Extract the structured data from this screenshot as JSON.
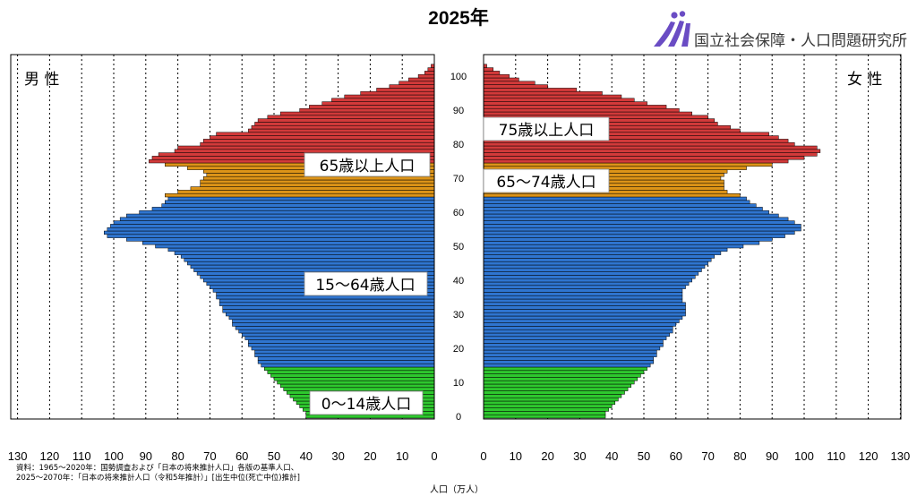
{
  "title": "2025年",
  "logo": {
    "name": "国立社会保障・人口問題研究所"
  },
  "chart_data": {
    "type": "bar",
    "orientation": "horizontal-population-pyramid",
    "title": "2025年",
    "xlabel": "人口（万人）",
    "ylabel": "",
    "xlim": [
      0,
      130
    ],
    "ylim": [
      0,
      105
    ],
    "x_ticks": [
      130,
      120,
      110,
      100,
      90,
      80,
      70,
      60,
      50,
      40,
      30,
      20,
      10,
      0
    ],
    "y_ticks": [
      0,
      10,
      20,
      30,
      40,
      50,
      60,
      70,
      80,
      90,
      100
    ],
    "grid": true,
    "sides": {
      "male": "男 性",
      "female": "女 性"
    },
    "age_groups": [
      {
        "name": "0～14歳人口",
        "from": 0,
        "to": 14,
        "color": "#2ec82e"
      },
      {
        "name": "15～64歳人口",
        "from": 15,
        "to": 64,
        "color": "#2f75d0"
      },
      {
        "name": "65～74歳人口",
        "from": 65,
        "to": 74,
        "color": "#dd9418"
      },
      {
        "name": "75歳以上人口",
        "from": 75,
        "to": 105,
        "color": "#d23a3a"
      }
    ],
    "group_labels_shown": [
      "0～14歳人口",
      "15～64歳人口",
      "65歳以上人口",
      "65～74歳人口",
      "75歳以上人口"
    ],
    "ages": [
      0,
      1,
      2,
      3,
      4,
      5,
      6,
      7,
      8,
      9,
      10,
      11,
      12,
      13,
      14,
      15,
      16,
      17,
      18,
      19,
      20,
      21,
      22,
      23,
      24,
      25,
      26,
      27,
      28,
      29,
      30,
      31,
      32,
      33,
      34,
      35,
      36,
      37,
      38,
      39,
      40,
      41,
      42,
      43,
      44,
      45,
      46,
      47,
      48,
      49,
      50,
      51,
      52,
      53,
      54,
      55,
      56,
      57,
      58,
      59,
      60,
      61,
      62,
      63,
      64,
      65,
      66,
      67,
      68,
      69,
      70,
      71,
      72,
      73,
      74,
      75,
      76,
      77,
      78,
      79,
      80,
      81,
      82,
      83,
      84,
      85,
      86,
      87,
      88,
      89,
      90,
      91,
      92,
      93,
      94,
      95,
      96,
      97,
      98,
      99,
      100,
      101,
      102,
      103,
      104,
      105
    ],
    "series": [
      {
        "name": "男 性",
        "values": [
          40,
          40,
          41,
          42,
          43,
          44,
          45,
          46,
          47,
          48,
          49,
          50,
          51,
          52,
          53,
          54,
          55,
          55,
          56,
          56,
          57,
          58,
          58,
          59,
          60,
          61,
          62,
          63,
          63,
          64,
          65,
          66,
          66,
          67,
          67,
          68,
          68,
          69,
          70,
          71,
          72,
          73,
          74,
          75,
          76,
          77,
          78,
          79,
          81,
          83,
          87,
          91,
          96,
          102,
          103,
          102,
          101,
          100,
          98,
          96,
          92,
          88,
          85,
          84,
          83,
          84,
          80,
          76,
          73,
          73,
          72,
          71,
          72,
          77,
          84,
          89,
          88,
          86,
          81,
          80,
          73,
          72,
          70,
          68,
          58,
          57,
          56,
          55,
          52,
          48,
          42,
          39,
          35,
          32,
          28,
          23,
          18,
          14,
          11,
          8,
          5,
          3,
          2,
          1,
          0,
          0
        ]
      },
      {
        "name": "女 性",
        "values": [
          38,
          38,
          39,
          40,
          41,
          42,
          43,
          44,
          45,
          46,
          47,
          48,
          49,
          50,
          51,
          52,
          53,
          53,
          54,
          54,
          55,
          56,
          56,
          57,
          58,
          59,
          59,
          60,
          61,
          62,
          63,
          63,
          63,
          63,
          62,
          62,
          62,
          62,
          63,
          64,
          65,
          66,
          67,
          68,
          69,
          70,
          71,
          72,
          74,
          76,
          81,
          86,
          90,
          94,
          97,
          99,
          99,
          97,
          95,
          92,
          89,
          87,
          85,
          83,
          82,
          80,
          76,
          75,
          75,
          75,
          74,
          75,
          76,
          82,
          90,
          95,
          100,
          104,
          105,
          104,
          97,
          95,
          92,
          89,
          80,
          77,
          73,
          72,
          70,
          65,
          61,
          57,
          51,
          47,
          43,
          37,
          29,
          20,
          16,
          11,
          8,
          5,
          3,
          1,
          0,
          0
        ]
      }
    ]
  },
  "source_note": {
    "line1": "資料：1965～2020年：国勢調査および「日本の将来推計人口」各版の基準人口、",
    "line2": "2025～2070年：「日本の将来推計人口（令和5年推計）」[出生中位(死亡中位)推計]"
  }
}
